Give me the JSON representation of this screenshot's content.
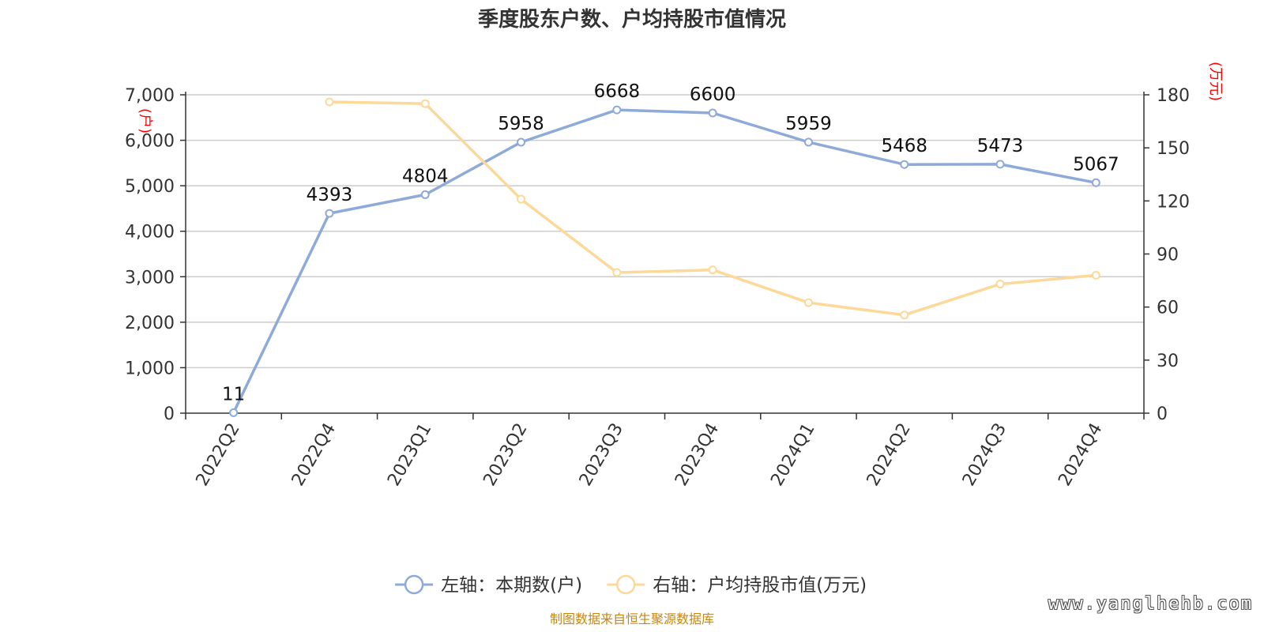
{
  "title": "季度股东户数、户均持股市值情况",
  "source_note": "制图数据来自恒生聚源数据库",
  "watermark": "www.yanglhehb.com",
  "colors": {
    "holders": "#8eaad8",
    "avg_value": "#fcd899",
    "axis_unit": "#ff0000",
    "grid": "#cccccc",
    "axis": "#333333",
    "text": "#333333"
  },
  "chart_data": {
    "type": "line",
    "categories": [
      "2022Q2",
      "2022Q4",
      "2023Q1",
      "2023Q2",
      "2023Q3",
      "2023Q4",
      "2024Q1",
      "2024Q2",
      "2024Q3",
      "2024Q4"
    ],
    "left_axis": {
      "unit": "(户)",
      "min": 0,
      "max": 7000,
      "ticks": [
        0,
        1000,
        2000,
        3000,
        4000,
        5000,
        6000,
        7000
      ],
      "tick_labels": [
        "0",
        "1,000",
        "2,000",
        "3,000",
        "4,000",
        "5,000",
        "6,000",
        "7,000"
      ]
    },
    "right_axis": {
      "unit": "(万元)",
      "min": 0,
      "max": 180,
      "ticks": [
        0,
        30,
        60,
        90,
        120,
        150,
        180
      ],
      "tick_labels": [
        "0",
        "30",
        "60",
        "90",
        "120",
        "150",
        "180"
      ]
    },
    "series": [
      {
        "name": "左轴：本期数(户)",
        "axis": "left",
        "color": "#8eaad8",
        "values": [
          11,
          4393,
          4804,
          5958,
          6668,
          6600,
          5959,
          5468,
          5473,
          5067
        ],
        "data_labels": [
          "11",
          "4393",
          "4804",
          "5958",
          "6668",
          "6600",
          "5959",
          "5468",
          "5473",
          "5067"
        ]
      },
      {
        "name": "右轴：户均持股市值(万元)",
        "axis": "right",
        "color": "#fcd899",
        "values": [
          null,
          176,
          175,
          121,
          79.5,
          81,
          62.5,
          55.5,
          73,
          78
        ]
      }
    ],
    "grid": true,
    "legend_position": "bottom"
  }
}
